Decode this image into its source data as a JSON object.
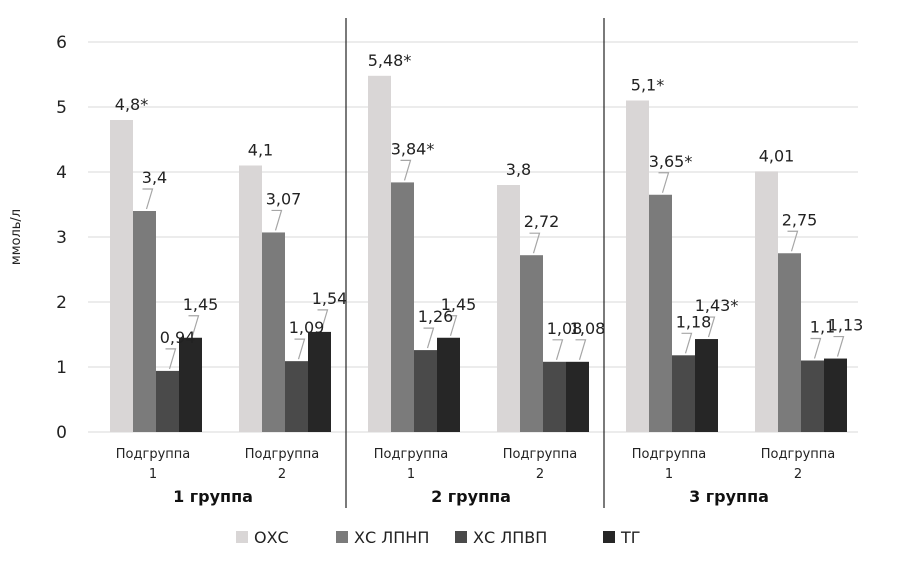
{
  "chart_data": {
    "type": "bar",
    "ylabel": "ммоль/л",
    "ylim": [
      0,
      6
    ],
    "yticks": [
      0,
      1,
      2,
      3,
      4,
      5,
      6
    ],
    "grid": true,
    "legend_position": "bottom",
    "groups": [
      {
        "label": "1 группа",
        "subgroups": [
          [
            "Подгруппа",
            "1"
          ],
          [
            "Подгруппа",
            "2"
          ]
        ]
      },
      {
        "label": "2 группа",
        "subgroups": [
          [
            "Подгруппа",
            "1"
          ],
          [
            "Подгруппа",
            "2"
          ]
        ]
      },
      {
        "label": "3 группа",
        "subgroups": [
          [
            "Подгруппа",
            "1"
          ],
          [
            "Подгруппа",
            "2"
          ]
        ]
      }
    ],
    "series": [
      {
        "name": "ОХС",
        "color": "#d9d6d6",
        "values": [
          4.8,
          4.1,
          5.48,
          3.8,
          5.1,
          4.01
        ],
        "labels": [
          "4,8*",
          "4,1",
          "5,48*",
          "3,8",
          "5,1*",
          "4,01"
        ]
      },
      {
        "name": "ХС ЛПНП",
        "color": "#7b7b7b",
        "values": [
          3.4,
          3.07,
          3.84,
          2.72,
          3.65,
          2.75
        ],
        "labels": [
          "3,4",
          "3,07",
          "3,84*",
          "2,72",
          "3,65*",
          "2,75"
        ]
      },
      {
        "name": "ХС ЛПВП",
        "color": "#4a4a4a",
        "values": [
          0.94,
          1.09,
          1.26,
          1.08,
          1.18,
          1.1
        ],
        "labels": [
          "0,94",
          "1,09",
          "1,26",
          "1,08",
          "1,18",
          "1,1"
        ]
      },
      {
        "name": "ТГ",
        "color": "#262626",
        "values": [
          1.45,
          1.54,
          1.45,
          1.08,
          1.43,
          1.13
        ],
        "labels": [
          "1,45",
          "1,54",
          "1,45",
          "1,08",
          "1,43*",
          "1,13"
        ]
      }
    ]
  }
}
